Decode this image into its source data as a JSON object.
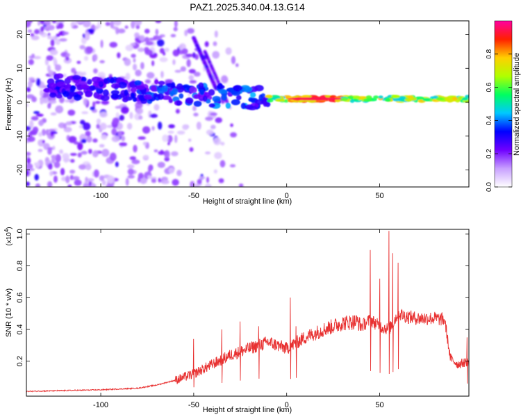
{
  "figure_title": "PAZ1.2025.340.04.13.G14",
  "chart_data": [
    {
      "type": "heatmap",
      "title": "PAZ1.2025.340.04.13.G14",
      "xlabel": "Height of straight line (km)",
      "ylabel": "Frequency (Hz)",
      "xlim": [
        -140,
        98
      ],
      "ylim": [
        -25,
        24
      ],
      "xticks": [
        -100,
        -50,
        0,
        50
      ],
      "yticks": [
        -20,
        -10,
        0,
        10,
        20
      ],
      "xtick_labels": [
        "-100",
        "-50",
        "0",
        "50"
      ],
      "ytick_labels": [
        "-20",
        "-10",
        "0",
        "10",
        "20"
      ],
      "colorbar": {
        "label": "Normalized spectral amplitude",
        "range": [
          0,
          1
        ],
        "ticks": [
          0,
          0.2,
          0.4,
          0.6,
          0.8
        ],
        "tick_labels": [
          "0.0",
          "0.2",
          "0.4",
          "0.6",
          "0.8"
        ],
        "colors": [
          "#ffffff",
          "#c8a0ff",
          "#7000ff",
          "#0000ff",
          "#00c8ff",
          "#00ff60",
          "#b0ff00",
          "#ffd000",
          "#ff2000",
          "#ff00a0"
        ]
      },
      "features": [
        {
          "name": "main-band",
          "x_range": [
            -130,
            98
          ],
          "frequency": [
            -1,
            7
          ],
          "peak_x_range": [
            0,
            30
          ],
          "peak_amplitude": 0.95
        },
        {
          "name": "upper-arc",
          "x_range": [
            -50,
            -38
          ],
          "frequency": [
            4,
            19
          ]
        },
        {
          "name": "noise-region",
          "x_range": [
            -140,
            -20
          ],
          "frequency": [
            -25,
            24
          ],
          "amplitude": 0.15
        }
      ]
    },
    {
      "type": "line",
      "xlabel": "Height of straight line (km)",
      "ylabel": "SNR (10 * v/v)",
      "y_multiplier_label": "(x10",
      "y_multiplier_exponent": "4",
      "y_multiplier_close": ")",
      "xlim": [
        -140,
        98
      ],
      "ylim": [
        -0.02,
        1.03
      ],
      "xticks": [
        -100,
        -50,
        0,
        50
      ],
      "xtick_labels": [
        "-100",
        "-50",
        "0",
        "50"
      ],
      "yticks": [
        0.2,
        0.4,
        0.6,
        0.8,
        1.0
      ],
      "ytick_labels": [
        "0.2",
        "0.4",
        "0.6",
        "0.8",
        "1.0"
      ],
      "series": [
        {
          "name": "SNR",
          "color": "#e83030",
          "x": [
            -140,
            -120,
            -100,
            -80,
            -70,
            -60,
            -50,
            -40,
            -30,
            -20,
            -10,
            0,
            10,
            20,
            30,
            38,
            40,
            45,
            50,
            55,
            60,
            65,
            70,
            80,
            85,
            88,
            92,
            98
          ],
          "y": [
            0.01,
            0.015,
            0.02,
            0.03,
            0.05,
            0.08,
            0.12,
            0.18,
            0.24,
            0.28,
            0.32,
            0.28,
            0.35,
            0.4,
            0.44,
            0.45,
            0.42,
            0.46,
            0.42,
            0.4,
            0.5,
            0.48,
            0.47,
            0.47,
            0.46,
            0.22,
            0.18,
            0.2
          ]
        }
      ],
      "spikes": [
        {
          "x": -50,
          "y": 0.34
        },
        {
          "x": -35,
          "y": 0.4
        },
        {
          "x": -25,
          "y": 0.45
        },
        {
          "x": -15,
          "y": 0.42
        },
        {
          "x": 2,
          "y": 0.6
        },
        {
          "x": 5,
          "y": 0.42
        },
        {
          "x": 45,
          "y": 0.9
        },
        {
          "x": 50,
          "y": 0.72
        },
        {
          "x": 55,
          "y": 1.02
        },
        {
          "x": 57,
          "y": 0.88
        },
        {
          "x": 60,
          "y": 0.82
        },
        {
          "x": 97,
          "y": 0.35
        }
      ]
    }
  ]
}
